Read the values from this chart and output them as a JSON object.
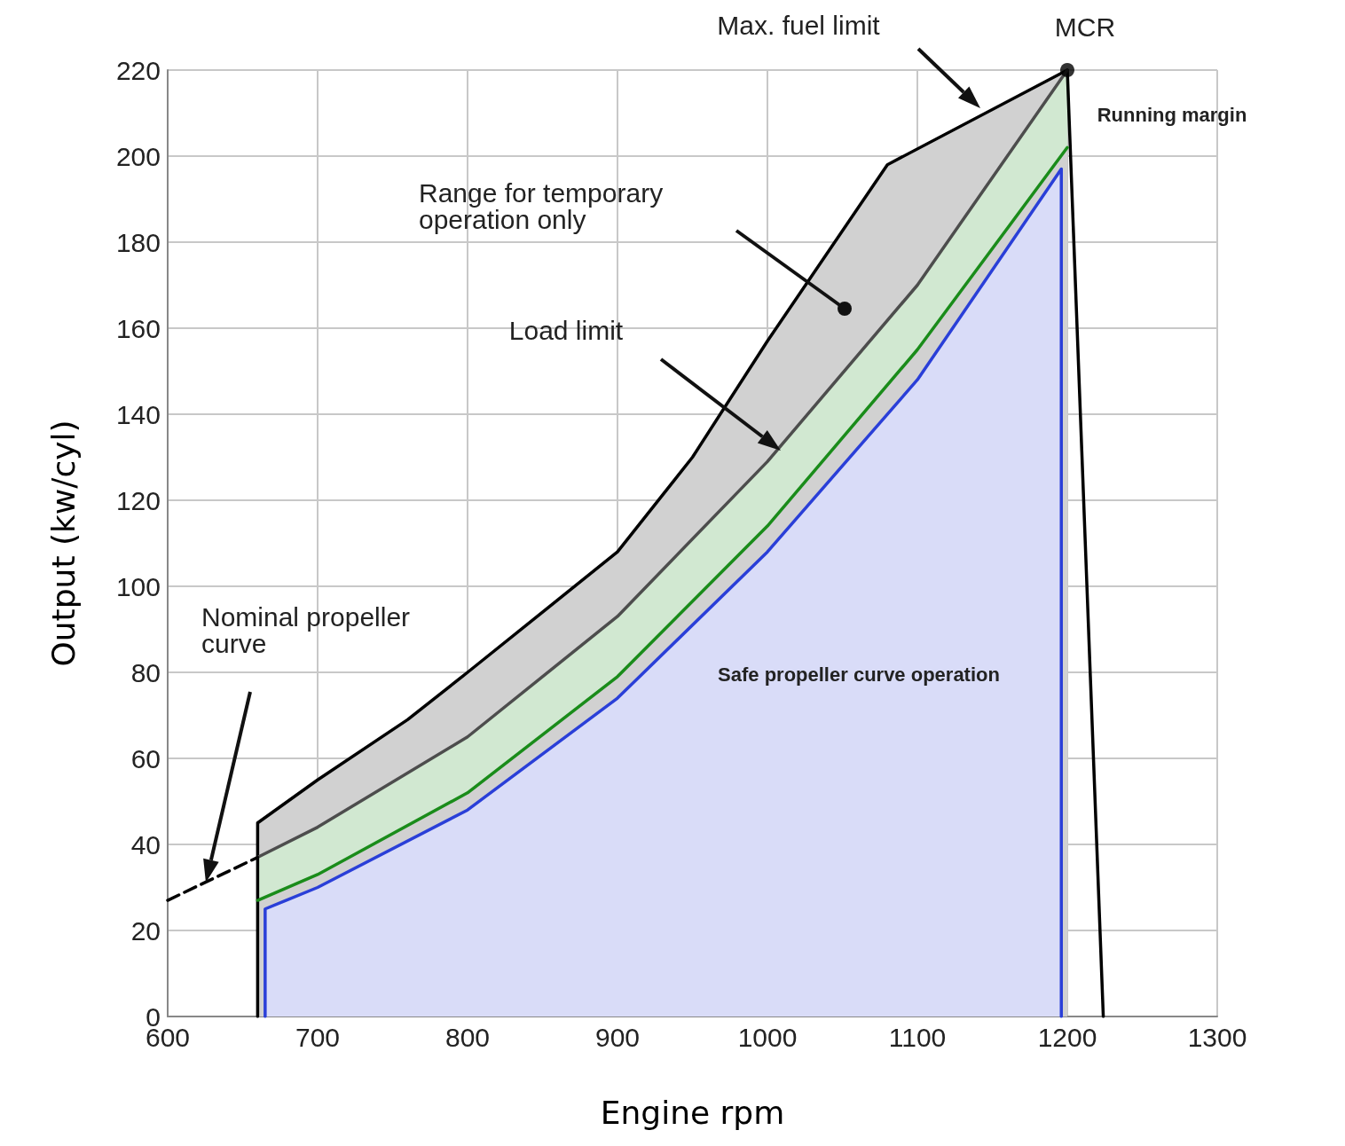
{
  "chart_data": {
    "type": "line",
    "xlabel": "Engine rpm",
    "ylabel": "Output (kw/cyl)",
    "xlim": [
      600,
      1300
    ],
    "xticks": [
      600,
      700,
      800,
      900,
      1000,
      1100,
      1200,
      1300
    ],
    "ylim": [
      0,
      220
    ],
    "yticks": [
      0,
      20,
      40,
      60,
      80,
      100,
      120,
      140,
      160,
      180,
      200,
      220
    ],
    "grid": true,
    "series": [
      {
        "type": "area",
        "color": "#000000",
        "x": [
          660,
          660,
          700,
          760,
          800,
          850,
          900,
          950,
          1000,
          1080,
          1200
        ],
        "values": [
          0,
          45,
          55,
          69,
          80,
          94,
          108,
          130,
          157,
          198,
          220
        ]
      },
      {
        "type": "line",
        "color": "#000000",
        "x": [
          1200,
          1224
        ],
        "values": [
          220,
          0
        ]
      },
      {
        "type": "line",
        "color": "#1a8c1a",
        "x": [
          660,
          700,
          800,
          900,
          1000,
          1100,
          1200
        ],
        "values": [
          27,
          33,
          52,
          79,
          114,
          155,
          202
        ],
        "lower": [
          27,
          33,
          52,
          79,
          114,
          155,
          202
        ],
        "upper": [
          37,
          44,
          65,
          93,
          129,
          170,
          220
        ]
      },
      {
        "type": "line",
        "color": "#4d4d4d",
        "x": [
          660,
          700,
          800,
          900,
          1000,
          1100,
          1200
        ],
        "values": [
          37,
          44,
          65,
          93,
          129,
          170,
          220
        ]
      },
      {
        "type": "area",
        "color": "#2a3fd8",
        "x": [
          665,
          665,
          700,
          800,
          900,
          1000,
          1100,
          1196,
          1196
        ],
        "values": [
          0,
          25,
          30,
          48,
          74,
          108,
          148,
          197,
          0
        ]
      },
      {
        "type": "line",
        "color": "#000000",
        "line_style": "dashed",
        "x": [
          600,
          660
        ],
        "values": [
          27,
          37
        ]
      },
      {
        "type": "scatter",
        "color": "#000000",
        "marker": "circle",
        "x": [
          1200
        ],
        "values": [
          220
        ]
      }
    ],
    "annotations": [
      "Max. fuel limit",
      {
        "text": "MCR",
        "x": 1200,
        "y": 220
      },
      {
        "text": "Running margin",
        "x": 1200,
        "y": 210
      },
      "Range for temporary operation only",
      "Load limit",
      "Nominal propeller curve",
      "Safe propeller curve operation"
    ]
  }
}
